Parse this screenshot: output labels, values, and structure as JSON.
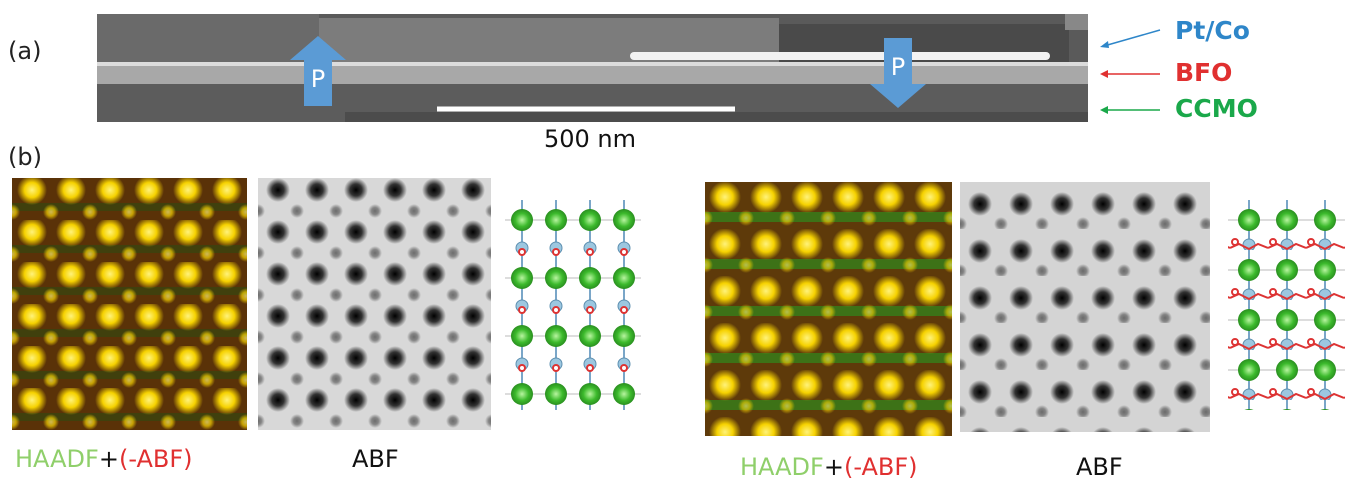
{
  "panel_a": {
    "label": "(a)",
    "arrows": [
      "P",
      "P"
    ],
    "layers": [
      "Pt/Co",
      "BFO",
      "CCMO"
    ],
    "scale_bar": "500 nm"
  },
  "panel_b": {
    "label": "(b)",
    "groups": [
      {
        "caption": {
          "haadf": "HAADF",
          "plus": "+",
          "abf": "(-ABF)"
        },
        "abf_label": "ABF"
      },
      {
        "caption": {
          "haadf": "HAADF",
          "plus": "+",
          "abf": "(-ABF)"
        },
        "abf_label": "ABF"
      }
    ]
  }
}
